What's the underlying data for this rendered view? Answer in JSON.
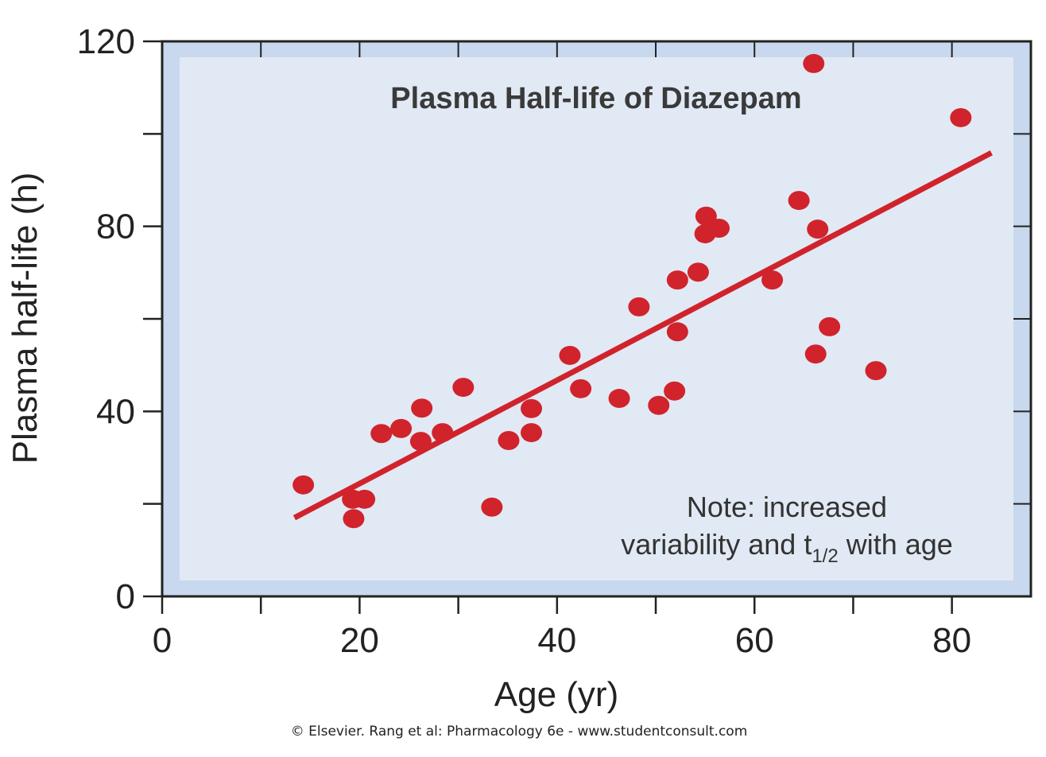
{
  "chart_data": {
    "type": "scatter",
    "title": "Plasma Half-life of Diazepam",
    "xlabel": "Age (yr)",
    "ylabel": "Plasma half-life (h)",
    "xlim": [
      0,
      88
    ],
    "ylim": [
      0,
      120
    ],
    "x_ticks": [
      0,
      20,
      40,
      60,
      80
    ],
    "x_minor_ticks": [
      10,
      30,
      50,
      70
    ],
    "y_ticks": [
      0,
      40,
      80,
      120
    ],
    "y_minor_ticks": [
      20,
      60,
      100
    ],
    "grid": false,
    "colors": {
      "points": "#d0232c",
      "panel_outer": "#c8d8ee",
      "panel_inner": "#e1e9f4"
    },
    "points": [
      {
        "x": 14.3,
        "y": 24.1
      },
      {
        "x": 19.3,
        "y": 21.0
      },
      {
        "x": 20.5,
        "y": 21.0
      },
      {
        "x": 19.4,
        "y": 16.8
      },
      {
        "x": 22.2,
        "y": 35.2
      },
      {
        "x": 24.2,
        "y": 36.3
      },
      {
        "x": 26.3,
        "y": 40.7
      },
      {
        "x": 26.2,
        "y": 33.5
      },
      {
        "x": 28.4,
        "y": 35.4
      },
      {
        "x": 30.5,
        "y": 45.2
      },
      {
        "x": 33.4,
        "y": 19.3
      },
      {
        "x": 35.1,
        "y": 33.7
      },
      {
        "x": 37.4,
        "y": 40.6
      },
      {
        "x": 37.4,
        "y": 35.4
      },
      {
        "x": 41.3,
        "y": 52.1
      },
      {
        "x": 42.4,
        "y": 44.9
      },
      {
        "x": 46.3,
        "y": 42.8
      },
      {
        "x": 48.3,
        "y": 62.6
      },
      {
        "x": 50.3,
        "y": 41.3
      },
      {
        "x": 51.9,
        "y": 44.4
      },
      {
        "x": 52.2,
        "y": 68.4
      },
      {
        "x": 52.2,
        "y": 57.2
      },
      {
        "x": 54.3,
        "y": 70.1
      },
      {
        "x": 55.1,
        "y": 82.2
      },
      {
        "x": 55.0,
        "y": 78.4
      },
      {
        "x": 56.4,
        "y": 79.6
      },
      {
        "x": 61.8,
        "y": 68.4
      },
      {
        "x": 64.5,
        "y": 85.6
      },
      {
        "x": 66.0,
        "y": 115.2
      },
      {
        "x": 66.4,
        "y": 79.4
      },
      {
        "x": 66.2,
        "y": 52.4
      },
      {
        "x": 67.6,
        "y": 58.3
      },
      {
        "x": 72.3,
        "y": 48.8
      },
      {
        "x": 80.9,
        "y": 103.5
      }
    ],
    "trend_line": {
      "x": [
        13.4,
        84.0
      ],
      "y": [
        17.0,
        95.9
      ]
    },
    "annotation": {
      "line1": "Note: increased",
      "line2_pre": "variability and t",
      "line2_sub": "1/2",
      "line2_post": " with age"
    }
  },
  "credit": "© Elsevier. Rang et al: Pharmacology 6e - www.studentconsult.com"
}
